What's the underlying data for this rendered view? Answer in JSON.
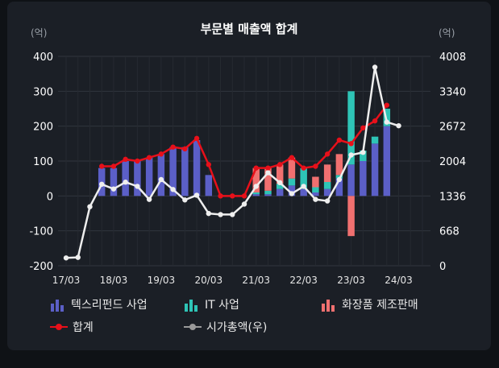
{
  "chart_data": {
    "type": "bar",
    "title": "부문별 매출액 합계",
    "left_unit": "(억)",
    "right_unit": "(억)",
    "ylim_left": [
      -200,
      400
    ],
    "ylim_right": [
      0,
      4008
    ],
    "yticks_left": [
      400,
      300,
      200,
      100,
      0,
      -100,
      -200
    ],
    "yticks_right": [
      4008,
      3340,
      2672,
      2004,
      1336,
      668,
      0
    ],
    "xticks": [
      "17/03",
      "18/03",
      "19/03",
      "20/03",
      "21/03",
      "22/03",
      "23/03",
      "24/03"
    ],
    "x": [
      "17/03",
      "17/06",
      "17/09",
      "17/12",
      "18/03",
      "18/06",
      "18/09",
      "18/12",
      "19/03",
      "19/06",
      "19/09",
      "19/12",
      "20/03",
      "20/06",
      "20/09",
      "20/12",
      "21/03",
      "21/06",
      "21/09",
      "21/12",
      "22/03",
      "22/06",
      "22/09",
      "22/12",
      "23/03",
      "23/06",
      "23/09",
      "23/12",
      "24/03",
      "24/06",
      "24/09"
    ],
    "colors": {
      "textile": "#5b5fc7",
      "it": "#2ec4b6",
      "cosmetics": "#f07070",
      "total": "#e8101a",
      "market_cap": "#eeeeee"
    },
    "series": [
      {
        "name": "텍스리펀드 사업",
        "values": [
          null,
          null,
          null,
          80,
          80,
          100,
          100,
          110,
          120,
          140,
          140,
          160,
          60,
          0,
          0,
          0,
          5,
          5,
          20,
          30,
          20,
          10,
          20,
          50,
          90,
          100,
          150,
          200,
          null,
          null,
          null
        ]
      },
      {
        "name": "IT 사업",
        "values": [
          null,
          null,
          null,
          0,
          0,
          0,
          0,
          0,
          0,
          0,
          0,
          0,
          0,
          0,
          0,
          0,
          5,
          10,
          15,
          20,
          60,
          15,
          20,
          10,
          210,
          30,
          20,
          50,
          null,
          null,
          null
        ]
      },
      {
        "name": "화장품 제조판매",
        "values": [
          null,
          null,
          null,
          0,
          0,
          0,
          0,
          0,
          0,
          0,
          0,
          0,
          0,
          0,
          0,
          0,
          70,
          65,
          55,
          60,
          0,
          30,
          50,
          60,
          -115,
          0,
          0,
          0,
          null,
          null,
          null
        ]
      },
      {
        "name": "합계",
        "values": [
          null,
          null,
          null,
          85,
          85,
          105,
          100,
          110,
          120,
          140,
          135,
          165,
          90,
          0,
          0,
          0,
          80,
          80,
          90,
          110,
          80,
          85,
          120,
          160,
          150,
          195,
          215,
          260,
          null,
          null,
          null
        ]
      },
      {
        "name": "시가총액(우)",
        "values": [
          150,
          160,
          1130,
          1560,
          1470,
          1600,
          1520,
          1270,
          1650,
          1460,
          1260,
          1350,
          1000,
          980,
          980,
          1180,
          1520,
          1780,
          1590,
          1380,
          1520,
          1270,
          1240,
          1650,
          2120,
          2170,
          3800,
          2750,
          2680,
          null,
          null
        ]
      }
    ],
    "legend": [
      "텍스리펀드 사업",
      "IT 사업",
      "화장품 제조판매",
      "합계",
      "시가총액(우)"
    ]
  }
}
